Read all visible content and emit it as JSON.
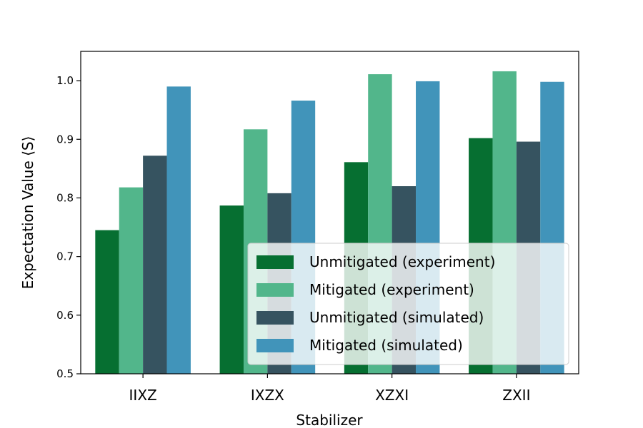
{
  "chart_data": {
    "type": "bar",
    "title": "",
    "xlabel": "Stabilizer",
    "ylabel": "Expectation Value ⟨S⟩",
    "ylim": [
      0.5,
      1.05
    ],
    "yticks": [
      "0.5",
      "0.6",
      "0.7",
      "0.8",
      "0.9",
      "1.0"
    ],
    "categories": [
      "IIXZ",
      "IXZX",
      "XZXI",
      "ZXII"
    ],
    "series": [
      {
        "name": "Unmitigated (experiment)",
        "color": "#066f31",
        "values": [
          0.745,
          0.787,
          0.861,
          0.902
        ]
      },
      {
        "name": "Mitigated (experiment)",
        "color": "#52b68b",
        "values": [
          0.818,
          0.917,
          1.011,
          1.016
        ]
      },
      {
        "name": "Unmitigated (simulated)",
        "color": "#365360",
        "values": [
          0.872,
          0.808,
          0.82,
          0.896
        ]
      },
      {
        "name": "Mitigated (simulated)",
        "color": "#4194ba",
        "values": [
          0.99,
          0.966,
          0.999,
          0.998
        ]
      }
    ],
    "legend_position": "lower-right",
    "grid": false
  }
}
